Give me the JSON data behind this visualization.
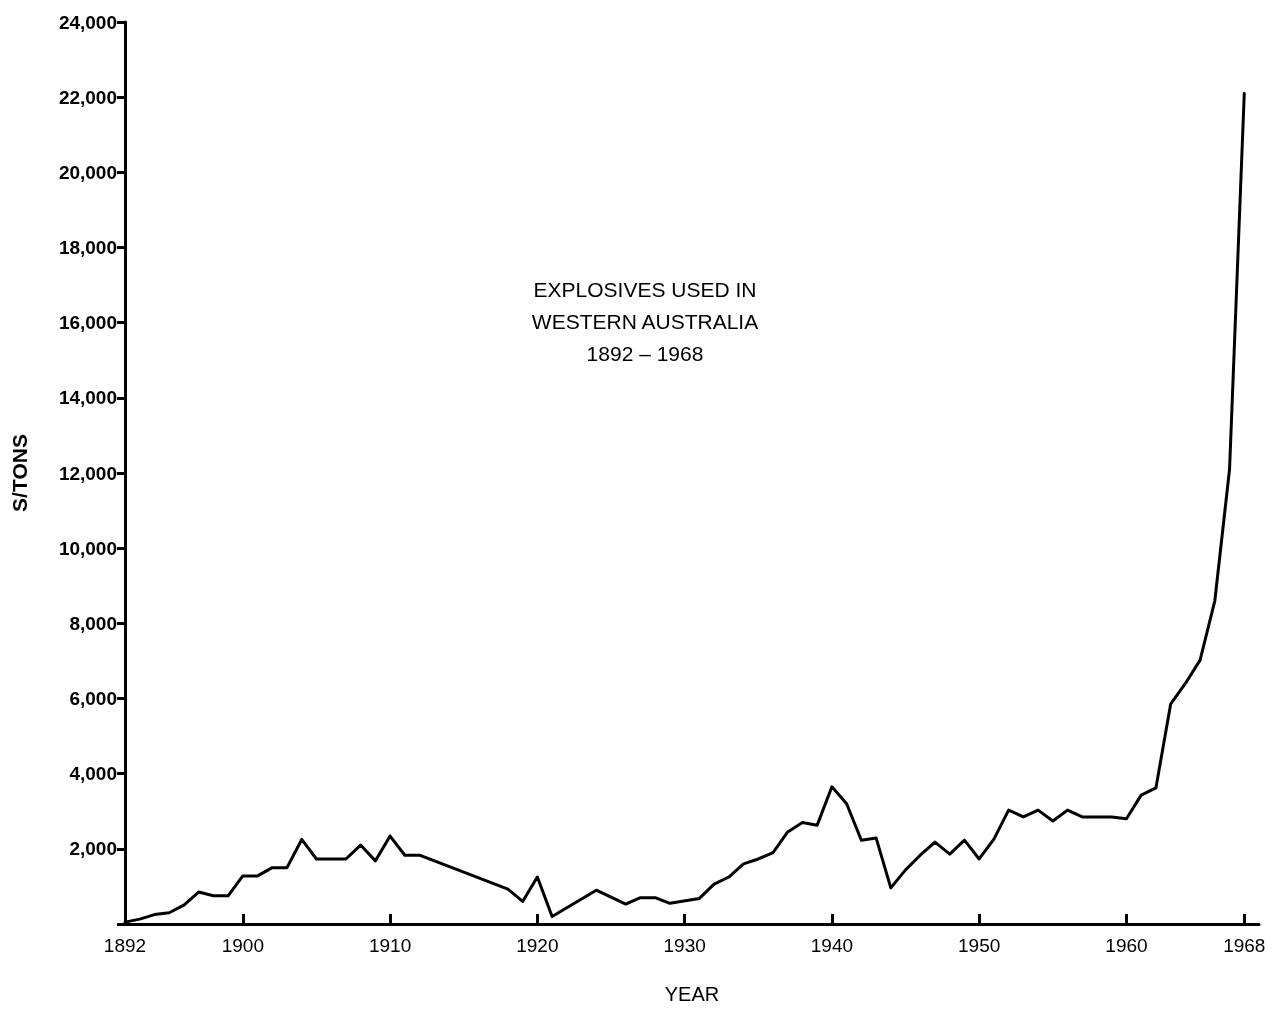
{
  "chart_data": {
    "type": "line",
    "title": "EXPLOSIVES USED IN\nWESTERN AUSTRALIA\n1892 – 1968",
    "xlabel": "YEAR",
    "ylabel": "S/TONS",
    "x": [
      1892,
      1893,
      1894,
      1895,
      1896,
      1897,
      1898,
      1899,
      1900,
      1901,
      1902,
      1903,
      1904,
      1905,
      1906,
      1907,
      1908,
      1909,
      1910,
      1911,
      1912,
      1918,
      1919,
      1920,
      1921,
      1924,
      1926,
      1927,
      1928,
      1929,
      1931,
      1932,
      1933,
      1934,
      1935,
      1936,
      1937,
      1938,
      1939,
      1940,
      1941,
      1942,
      1943,
      1944,
      1945,
      1946,
      1947,
      1948,
      1949,
      1950,
      1951,
      1952,
      1953,
      1954,
      1955,
      1956,
      1957,
      1958,
      1959,
      1960,
      1961,
      1962,
      1963,
      1964,
      1965,
      1966,
      1967,
      1968
    ],
    "series": [
      {
        "color": "#000000",
        "values": [
          50,
          130,
          250,
          300,
          500,
          850,
          750,
          750,
          1280,
          1280,
          1500,
          1500,
          2250,
          1730,
          1730,
          1730,
          2100,
          1680,
          2340,
          1830,
          1830,
          930,
          600,
          1250,
          200,
          900,
          530,
          700,
          700,
          550,
          680,
          1060,
          1250,
          1600,
          1730,
          1900,
          2450,
          2700,
          2630,
          3650,
          3200,
          2230,
          2290,
          960,
          1440,
          1830,
          2180,
          1860,
          2230,
          1730,
          2260,
          3030,
          2850,
          3030,
          2740,
          3030,
          2850,
          2850,
          2850,
          2800,
          3430,
          3620,
          5850,
          6400,
          7020,
          8600,
          12100,
          22100
        ]
      }
    ],
    "xlim": [
      1892,
      1969
    ],
    "xticks": [
      1892,
      1900,
      1910,
      1920,
      1930,
      1940,
      1950,
      1960,
      1968
    ],
    "ylim": [
      0,
      24000
    ],
    "yticks": [
      {
        "value": 0,
        "label": null
      },
      {
        "value": 2000,
        "label": "2,000"
      },
      {
        "value": 4000,
        "label": "4,000"
      },
      {
        "value": 6000,
        "label": "6,000"
      },
      {
        "value": 8000,
        "label": "8,000"
      },
      {
        "value": 10000,
        "label": "10,000"
      },
      {
        "value": 12000,
        "label": "12,000"
      },
      {
        "value": 14000,
        "label": "14,000"
      },
      {
        "value": 16000,
        "label": "16,000"
      },
      {
        "value": 18000,
        "label": "18,000"
      },
      {
        "value": 20000,
        "label": "20,000"
      },
      {
        "value": 22000,
        "label": "22,000"
      },
      {
        "value": 24000,
        "label": "24,000"
      }
    ],
    "grid": false,
    "marker": "none",
    "line_style": "solid"
  }
}
